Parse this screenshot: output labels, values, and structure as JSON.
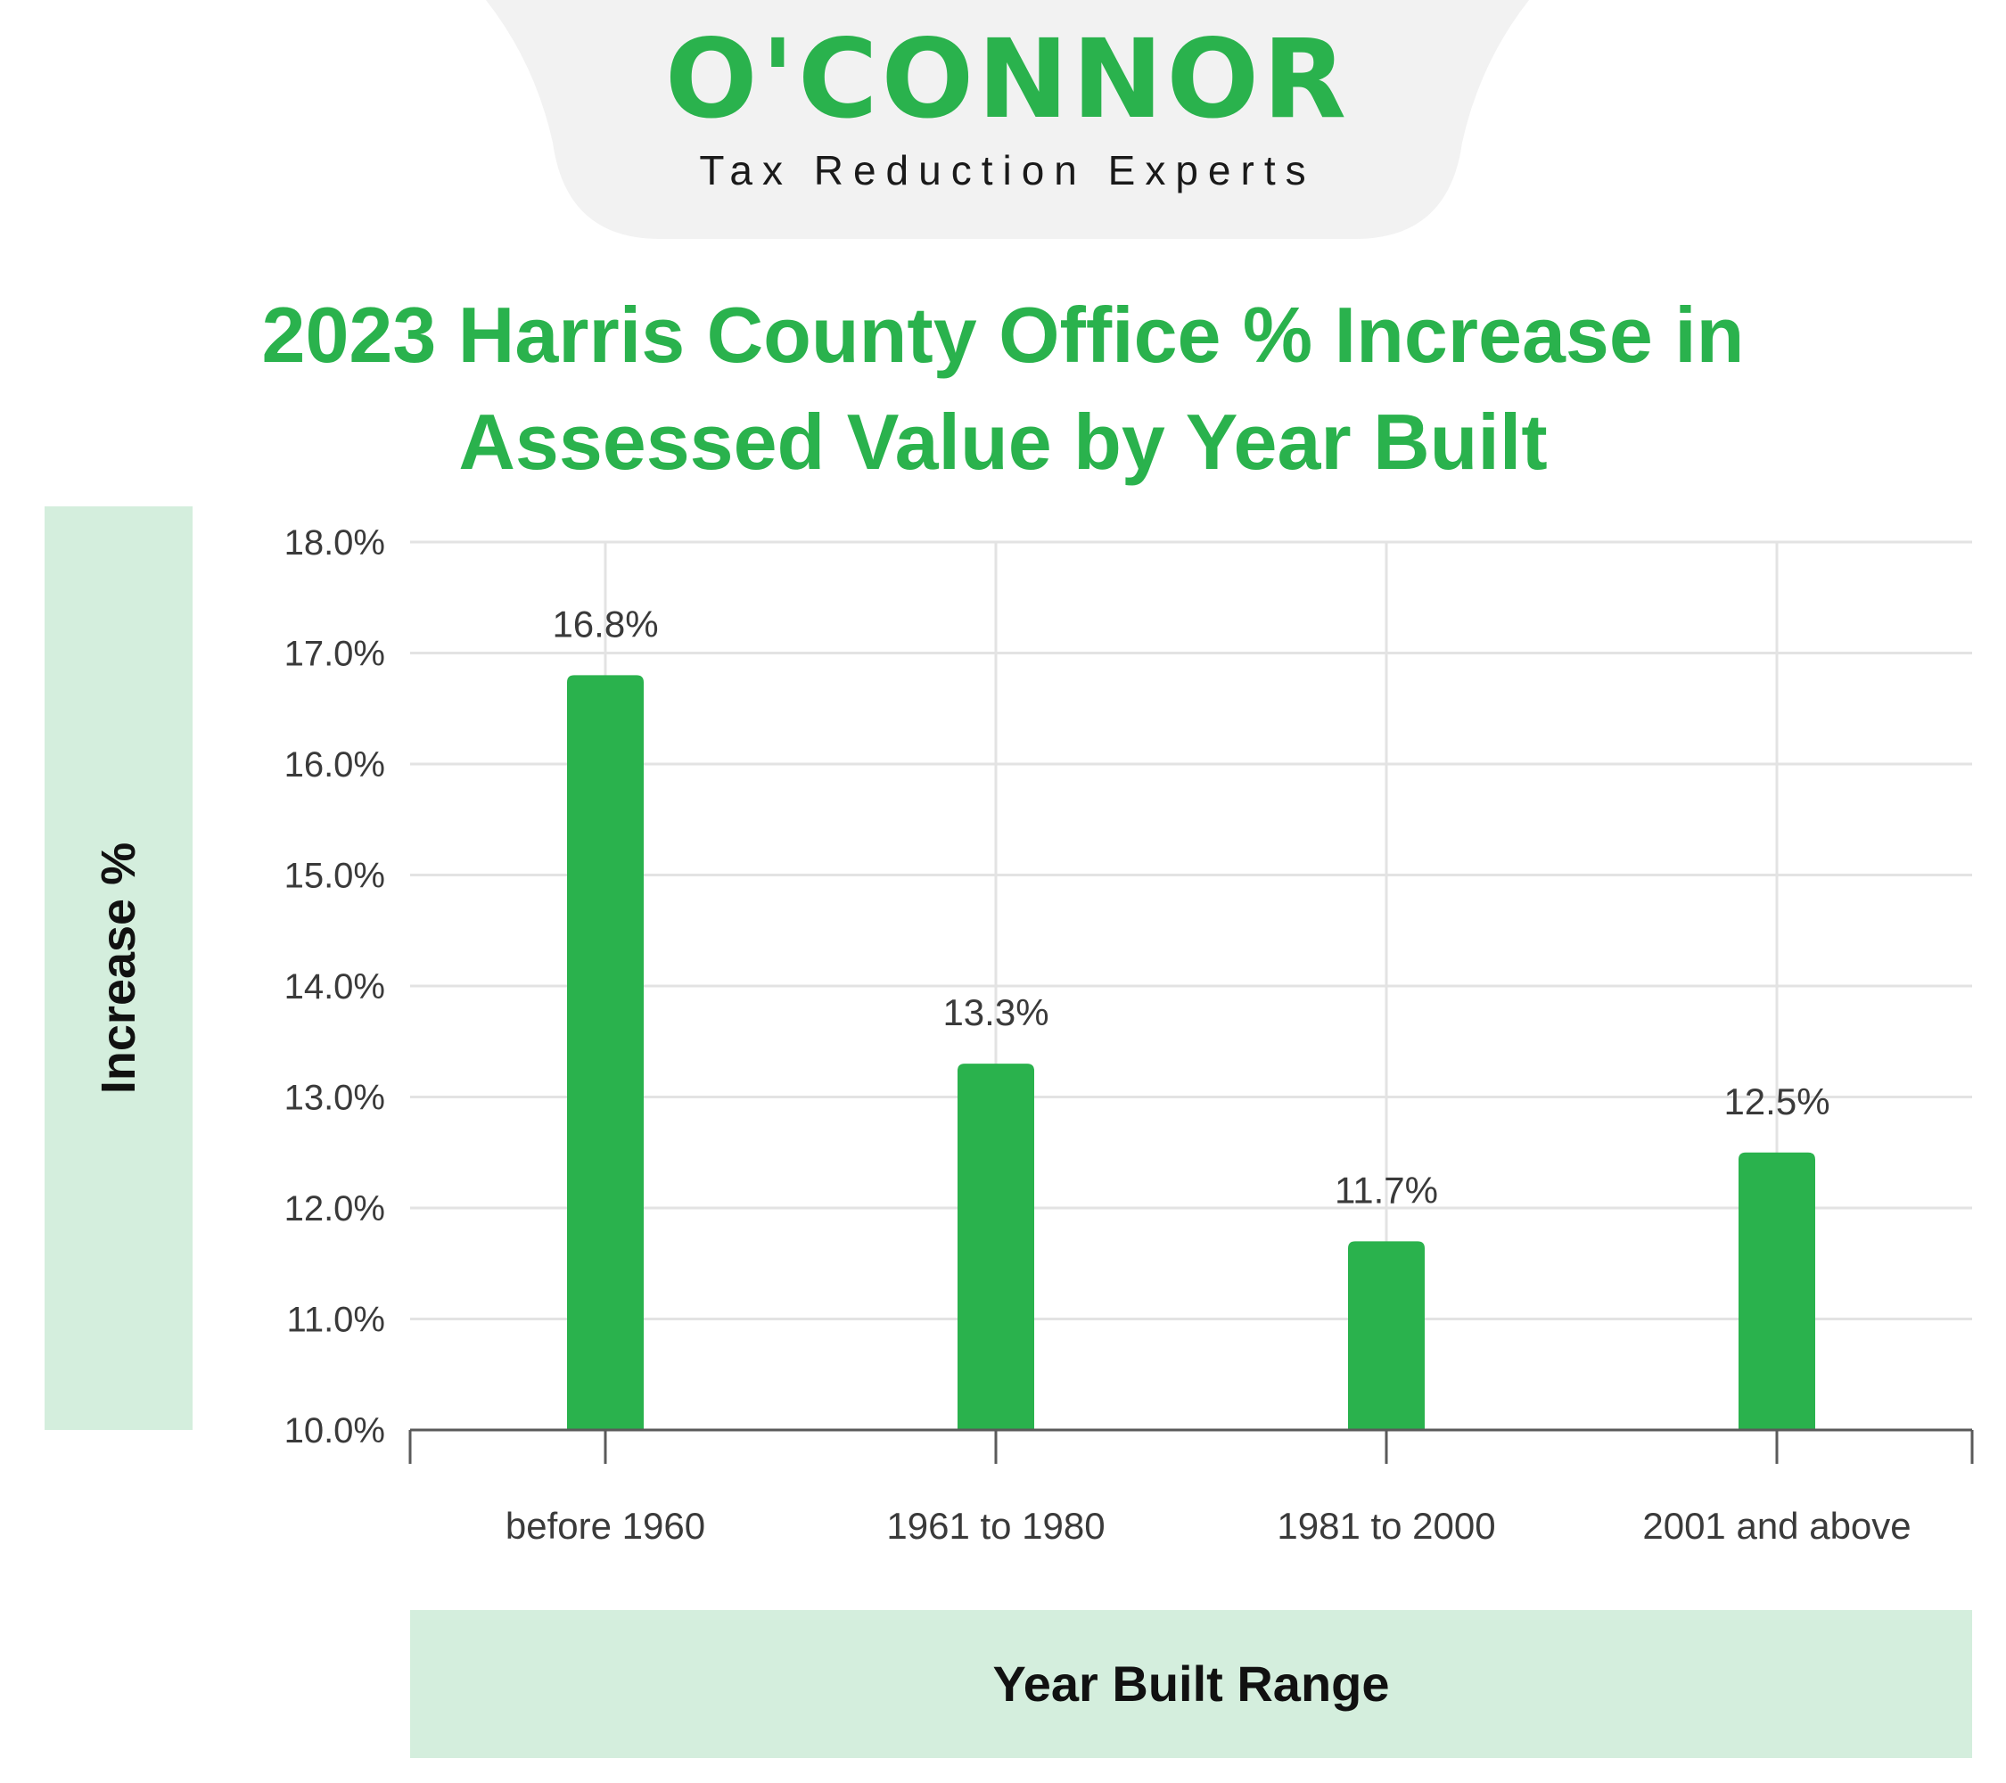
{
  "brand": {
    "name": "O'CONNOR",
    "tagline": "Tax Reduction Experts",
    "color": "#2ab24d",
    "tab_color": "#f2f2f2"
  },
  "chart_data": {
    "type": "bar",
    "title": "2023 Harris County Office % Increase in Assessed Value by Year Built",
    "xlabel": "Year Built Range",
    "ylabel": "Increase %",
    "categories": [
      "before 1960",
      "1961 to 1980",
      "1981 to 2000",
      "2001 and above"
    ],
    "values": [
      16.8,
      13.3,
      11.7,
      12.5
    ],
    "data_labels": [
      "16.8%",
      "13.3%",
      "11.7%",
      "12.5%"
    ],
    "ylim": [
      10.0,
      18.0
    ],
    "yticks": [
      "10.0%",
      "11.0%",
      "12.0%",
      "13.0%",
      "14.0%",
      "15.0%",
      "16.0%",
      "17.0%",
      "18.0%"
    ],
    "grid": true,
    "bar_color": "#2ab24d",
    "label_panel_color": "#d4eedd"
  }
}
